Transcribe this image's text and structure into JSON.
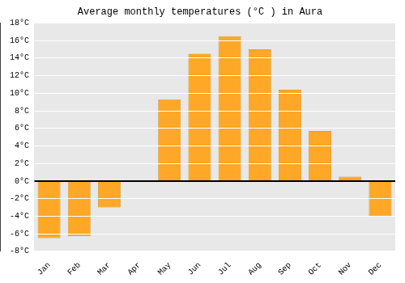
{
  "chart_data": {
    "type": "bar",
    "title": "Average monthly temperatures (°C ) in Aura",
    "categories": [
      "Jan",
      "Feb",
      "Mar",
      "Apr",
      "May",
      "Jun",
      "Jul",
      "Aug",
      "Sep",
      "Oct",
      "Nov",
      "Dec"
    ],
    "values": [
      -6.5,
      -6.3,
      -3.0,
      0.0,
      9.3,
      14.5,
      16.5,
      15.0,
      10.4,
      5.7,
      0.5,
      -4.0
    ],
    "color": "#FFA726",
    "ylim": [
      -8,
      18
    ],
    "yticks": [
      {
        "value": -8,
        "label": "-8°C"
      },
      {
        "value": -6,
        "label": "-6°C"
      },
      {
        "value": -4,
        "label": "-4°C"
      },
      {
        "value": -2,
        "label": "-2°C"
      },
      {
        "value": 0,
        "label": "0°C"
      },
      {
        "value": 2,
        "label": "2°C"
      },
      {
        "value": 4,
        "label": "4°C"
      },
      {
        "value": 6,
        "label": "6°C"
      },
      {
        "value": 8,
        "label": "8°C"
      },
      {
        "value": 10,
        "label": "10°C"
      },
      {
        "value": 12,
        "label": "12°C"
      },
      {
        "value": 14,
        "label": "14°C"
      },
      {
        "value": 16,
        "label": "16°C"
      },
      {
        "value": 18,
        "label": "18°C"
      }
    ],
    "grid": true
  }
}
